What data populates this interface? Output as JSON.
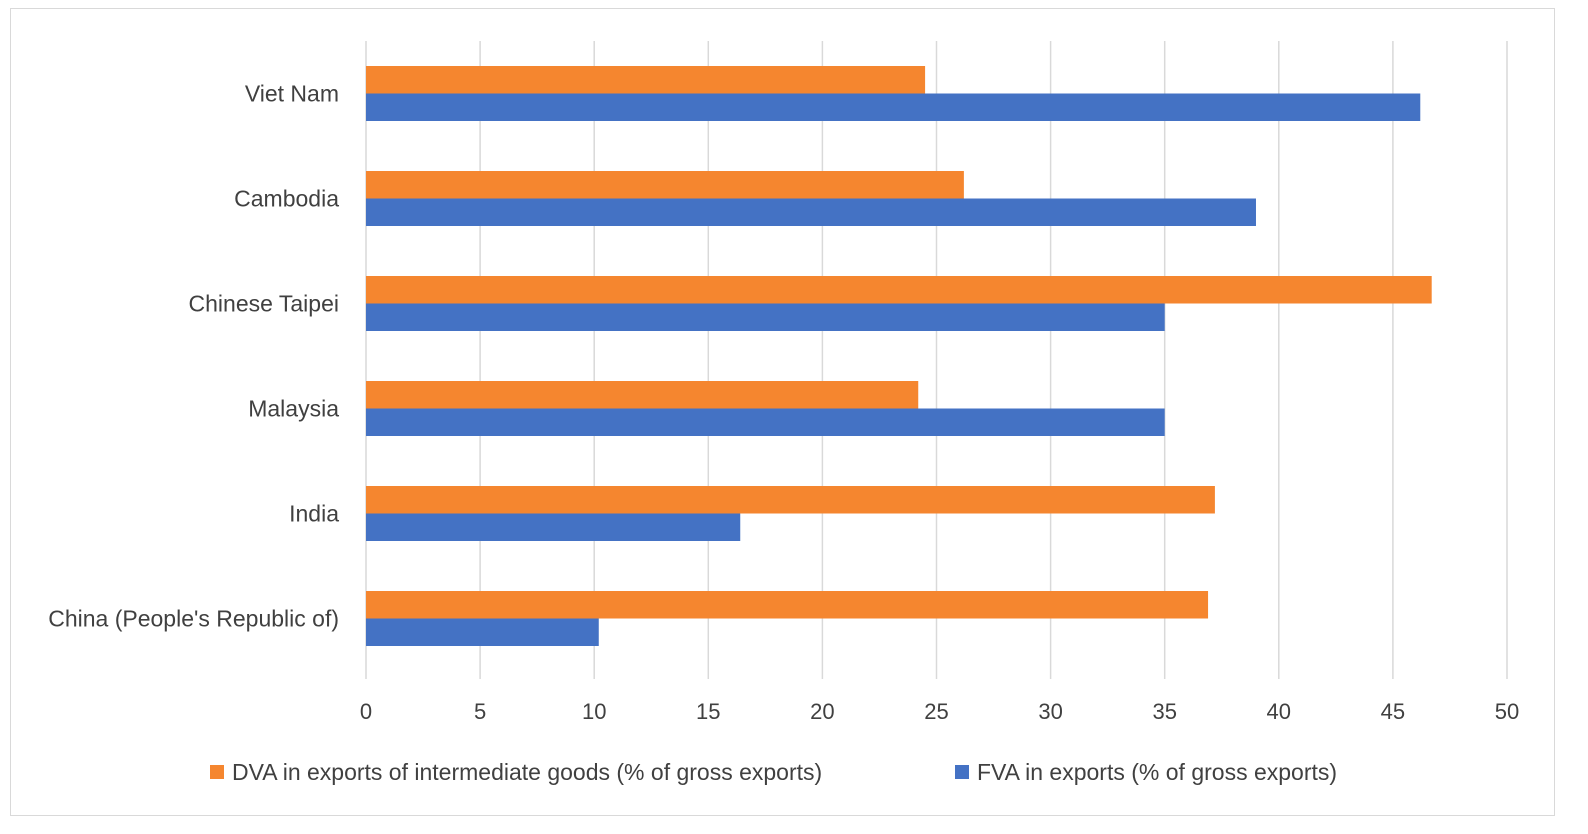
{
  "chart_data": {
    "type": "bar",
    "orientation": "horizontal",
    "categories": [
      "Viet Nam",
      "Cambodia",
      "Chinese Taipei",
      "Malaysia",
      "India",
      "China (People's Republic of)"
    ],
    "series": [
      {
        "name": "DVA in exports of intermediate goods (% of gross exports)",
        "color": "#F5862F",
        "values": [
          24.5,
          26.2,
          46.7,
          24.2,
          37.2,
          36.9
        ]
      },
      {
        "name": "FVA in exports (% of gross exports)",
        "color": "#4472C4",
        "values": [
          46.2,
          39.0,
          35.0,
          35.0,
          16.4,
          10.2
        ]
      }
    ],
    "xlim": [
      0,
      50
    ],
    "xticks": [
      "0",
      "5",
      "10",
      "15",
      "20",
      "25",
      "30",
      "35",
      "40",
      "45",
      "50"
    ],
    "grid": true,
    "legend_position": "bottom",
    "title": "",
    "xlabel": "",
    "ylabel": ""
  }
}
